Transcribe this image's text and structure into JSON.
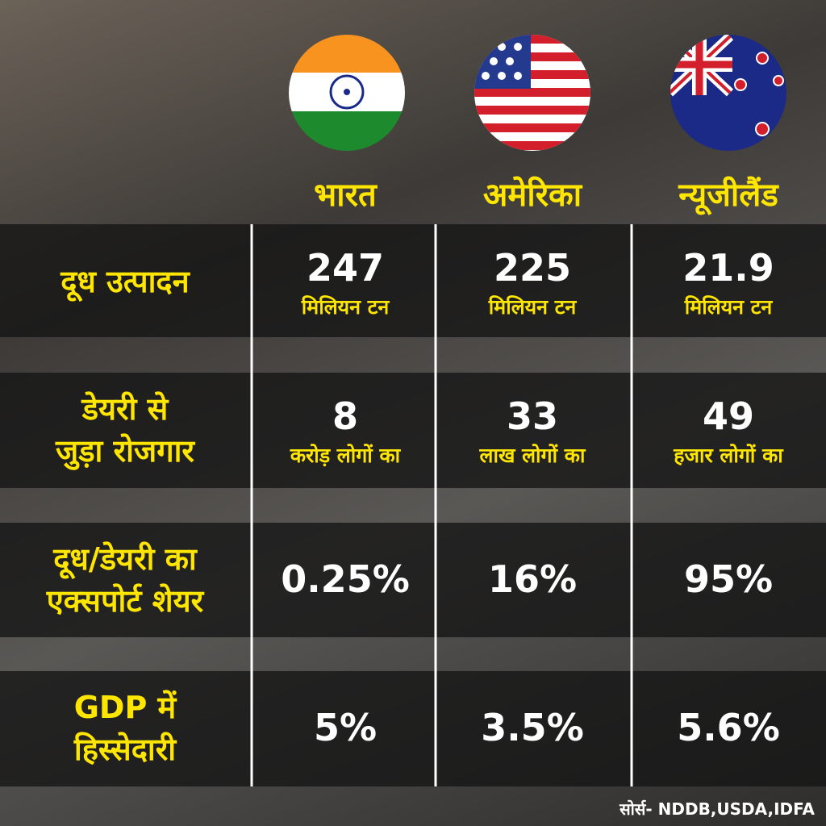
{
  "header": {
    "countries": [
      "भारत",
      "अमेरिका",
      "न्यूजीलैंड"
    ]
  },
  "table": {
    "rows": [
      {
        "label": [
          "दूध उत्पादन"
        ],
        "cells": [
          {
            "value": "247",
            "unit": "मिलियन टन"
          },
          {
            "value": "225",
            "unit": "मिलियन टन"
          },
          {
            "value": "21.9",
            "unit": "मिलियन टन"
          }
        ]
      },
      {
        "label": [
          "डेयरी से",
          "जुड़ा रोजगार"
        ],
        "cells": [
          {
            "value": "8",
            "unit": "करोड़ लोगों का"
          },
          {
            "value": "33",
            "unit": "लाख लोगों का"
          },
          {
            "value": "49",
            "unit": "हजार लोगों का"
          }
        ]
      },
      {
        "label": [
          "दूध/डेयरी का",
          "एक्सपोर्ट शेयर"
        ],
        "cells": [
          {
            "value": "0.25%"
          },
          {
            "value": "16%"
          },
          {
            "value": "95%"
          }
        ]
      },
      {
        "label": [
          "GDP में",
          "हिस्सेदारी"
        ],
        "cells": [
          {
            "value": "5%"
          },
          {
            "value": "3.5%"
          },
          {
            "value": "5.6%"
          }
        ]
      }
    ]
  },
  "footer": {
    "source": "सोर्स- NDDB,USDA,IDFA"
  }
}
